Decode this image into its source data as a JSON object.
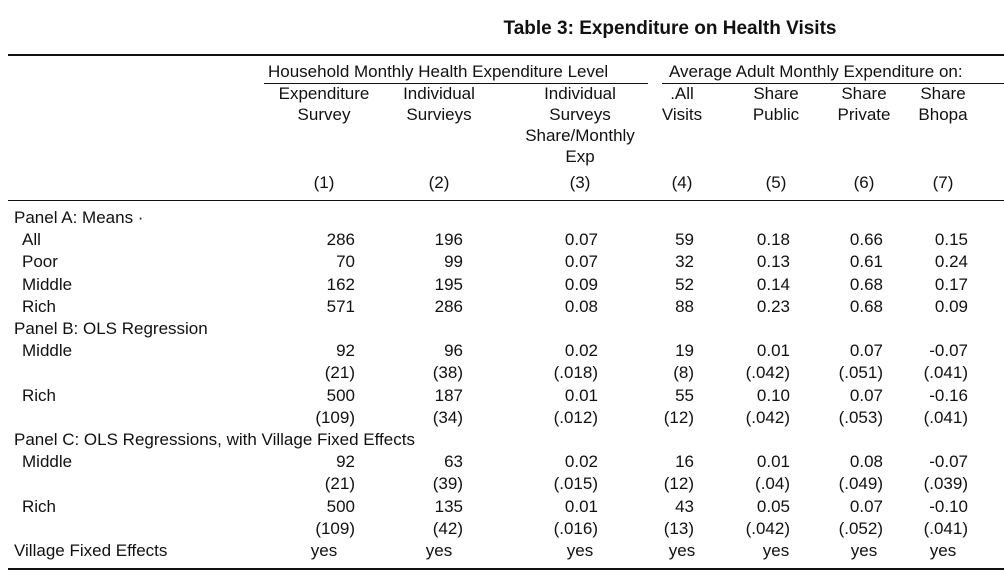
{
  "title": "Table 3: Expenditure on Health Visits",
  "group_headers": {
    "left": "Household Monthly Health Expenditure Level",
    "right": "Average Adult Monthly Expenditure on:"
  },
  "columns": [
    {
      "lines": [
        "Expenditure",
        "Survey"
      ],
      "num": "(1)"
    },
    {
      "lines": [
        "Individual",
        "Survieys"
      ],
      "num": "(2)"
    },
    {
      "lines": [
        "Individual",
        "Surveys",
        "Share/Monthly",
        "Exp"
      ],
      "num": "(3)"
    },
    {
      "lines": [
        ".All",
        "Visits"
      ],
      "num": "(4)"
    },
    {
      "lines": [
        "Share",
        "Public"
      ],
      "num": "(5)"
    },
    {
      "lines": [
        "Share",
        "Private"
      ],
      "num": "(6)"
    },
    {
      "lines": [
        "Share",
        "Bhopa"
      ],
      "num": "(7)"
    }
  ],
  "rows": [
    {
      "label": "Panel A: Means ·",
      "type": "panel",
      "values": []
    },
    {
      "label": "All",
      "type": "data",
      "values": [
        "286",
        "196",
        "0.07",
        "59",
        "0.18",
        "0.66",
        "0.15"
      ]
    },
    {
      "label": "Poor",
      "type": "data",
      "values": [
        "70",
        "99",
        "0.07",
        "32",
        "0.13",
        "0.61",
        "0.24"
      ]
    },
    {
      "label": "Middle",
      "type": "data",
      "values": [
        "162",
        "195",
        "0.09",
        "52",
        "0.14",
        "0.68",
        "0.17"
      ]
    },
    {
      "label": "Rich",
      "type": "data",
      "values": [
        "571",
        "286",
        "0.08",
        "88",
        "0.23",
        "0.68",
        "0.09"
      ]
    },
    {
      "label": "Panel B: OLS Regression",
      "type": "panel",
      "values": []
    },
    {
      "label": "Middle",
      "type": "data",
      "values": [
        "92",
        "96",
        "0.02",
        "19",
        "0.01",
        "0.07",
        "-0.07"
      ]
    },
    {
      "label": "",
      "type": "se",
      "values": [
        "(21)",
        "(38)",
        "(.018)",
        "(8)",
        "(.042)",
        "(.051)",
        "(.041)"
      ]
    },
    {
      "label": "Rich",
      "type": "data",
      "values": [
        "500",
        "187",
        "0.01",
        "55",
        "0.10",
        "0.07",
        "-0.16"
      ]
    },
    {
      "label": "",
      "type": "se",
      "values": [
        "(109)",
        "(34)",
        "(.012)",
        "(12)",
        "(.042)",
        "(.053)",
        "(.041)"
      ]
    },
    {
      "label": "Panel C: OLS Regressions, with Village Fixed Effects",
      "type": "panel",
      "values": []
    },
    {
      "label": "Middle",
      "type": "data",
      "values": [
        "92",
        "63",
        "0.02",
        "16",
        "0.01",
        "0.08",
        "-0.07"
      ]
    },
    {
      "label": "",
      "type": "se",
      "values": [
        "(21)",
        "(39)",
        "(.015)",
        "(12)",
        "(.04)",
        "(.049)",
        "(.039)"
      ]
    },
    {
      "label": "Rich",
      "type": "data",
      "values": [
        "500",
        "135",
        "0.01",
        "43",
        "0.05",
        "0.07",
        "-0.10"
      ]
    },
    {
      "label": "",
      "type": "se",
      "values": [
        "(109)",
        "(42)",
        "(.016)",
        "(13)",
        "(.042)",
        "(.052)",
        "(.041)"
      ]
    },
    {
      "label": "Village Fixed Effects",
      "type": "footer",
      "values": [
        "yes",
        "yes",
        "yes",
        "yes",
        "yes",
        "yes",
        "yes"
      ]
    }
  ]
}
